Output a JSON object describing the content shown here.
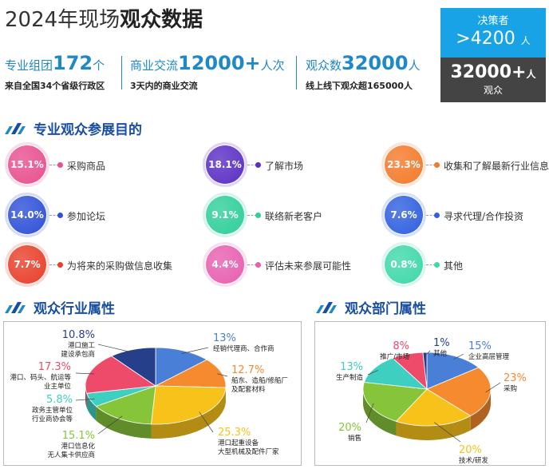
{
  "header": {
    "title_year": "2024年现场",
    "title_bold": "观众数据"
  },
  "stats": [
    {
      "label": "专业组团",
      "value": "172",
      "unit": "个",
      "sub": "来自全国34个省级行政区"
    },
    {
      "label": "商业交流",
      "value": "12000+",
      "unit": "人次",
      "sub": "3天内的商业交流"
    },
    {
      "label": "观众数",
      "value": "32000",
      "unit": "人",
      "sub": "线上线下观众超165000人"
    }
  ],
  "decision_box": {
    "label": "决策者",
    "value": ">4200",
    "unit": "人"
  },
  "audience_box": {
    "value": "32000+",
    "unit": "人",
    "label": "观众"
  },
  "purpose": {
    "title": "专业观众参展目的",
    "items": [
      {
        "pct": "15.1%",
        "label": "采购商品",
        "color": "#e8508f"
      },
      {
        "pct": "18.1%",
        "label": "了解市场",
        "color": "#5a2fc4"
      },
      {
        "pct": "23.3%",
        "label": "收集和了解最新行业信息",
        "color": "#f47a2a"
      },
      {
        "pct": "14.0%",
        "label": "参加论坛",
        "color": "#2f50d8"
      },
      {
        "pct": "9.1%",
        "label": "联络新老客户",
        "color": "#2fcf9a"
      },
      {
        "pct": "7.6%",
        "label": "寻求代理/合作投资",
        "color": "#3060e0"
      },
      {
        "pct": "7.7%",
        "label": "为将来的采购做信息收集",
        "color": "#e8402a"
      },
      {
        "pct": "4.4%",
        "label": "评估未来参展可能性",
        "color": "#e85fb0"
      },
      {
        "pct": "0.8%",
        "label": "其他",
        "color": "#3fd8aa"
      }
    ]
  },
  "industry": {
    "title": "观众行业属性"
  },
  "department": {
    "title": "观众部门属性"
  },
  "chart_data": [
    {
      "type": "pie",
      "title": "观众行业属性",
      "slices": [
        {
          "value": 13,
          "pct_label": "13%",
          "lines": [
            "经销代理商、合作商"
          ],
          "color": "#4a7fd8"
        },
        {
          "value": 12.7,
          "pct_label": "12.7%",
          "lines": [
            "船东、造船/修船厂",
            "及配套材料"
          ],
          "color": "#f58a2e"
        },
        {
          "value": 25.3,
          "pct_label": "25.3%",
          "lines": [
            "港口起重设备",
            "大型机械及配件厂家"
          ],
          "color": "#f7c21a"
        },
        {
          "value": 15.1,
          "pct_label": "15.1%",
          "lines": [
            "港口信息化",
            "无人集卡供应商"
          ],
          "color": "#86c43a"
        },
        {
          "value": 5.8,
          "pct_label": "5.8%",
          "lines": [
            "政务主管单位",
            "行业商协会等"
          ],
          "color": "#3fcfc0"
        },
        {
          "value": 17.3,
          "pct_label": "17.3%",
          "lines": [
            "港口、码头、航运等",
            "业主单位"
          ],
          "color": "#ee4a6a"
        },
        {
          "value": 10.8,
          "pct_label": "10.8%",
          "lines": [
            "港口施工",
            "建设承包商"
          ],
          "color": "#253f8a"
        }
      ]
    },
    {
      "type": "pie",
      "title": "观众部门属性",
      "slices": [
        {
          "value": 15,
          "pct_label": "15%",
          "lines": [
            "企业高层管理"
          ],
          "color": "#4a7fd8"
        },
        {
          "value": 23,
          "pct_label": "23%",
          "lines": [
            "采购"
          ],
          "color": "#f58a2e"
        },
        {
          "value": 20,
          "pct_label": "20%",
          "lines": [
            "技术/研发"
          ],
          "color": "#f7c21a"
        },
        {
          "value": 20,
          "pct_label": "20%",
          "lines": [
            "销售"
          ],
          "color": "#86c43a"
        },
        {
          "value": 13,
          "pct_label": "13%",
          "lines": [
            "生产制造"
          ],
          "color": "#3fcfc0"
        },
        {
          "value": 8,
          "pct_label": "8%",
          "lines": [
            "推广/市场"
          ],
          "color": "#ee4a6a"
        },
        {
          "value": 1,
          "pct_label": "1%",
          "lines": [
            "其他"
          ],
          "color": "#253f8a"
        }
      ]
    }
  ]
}
